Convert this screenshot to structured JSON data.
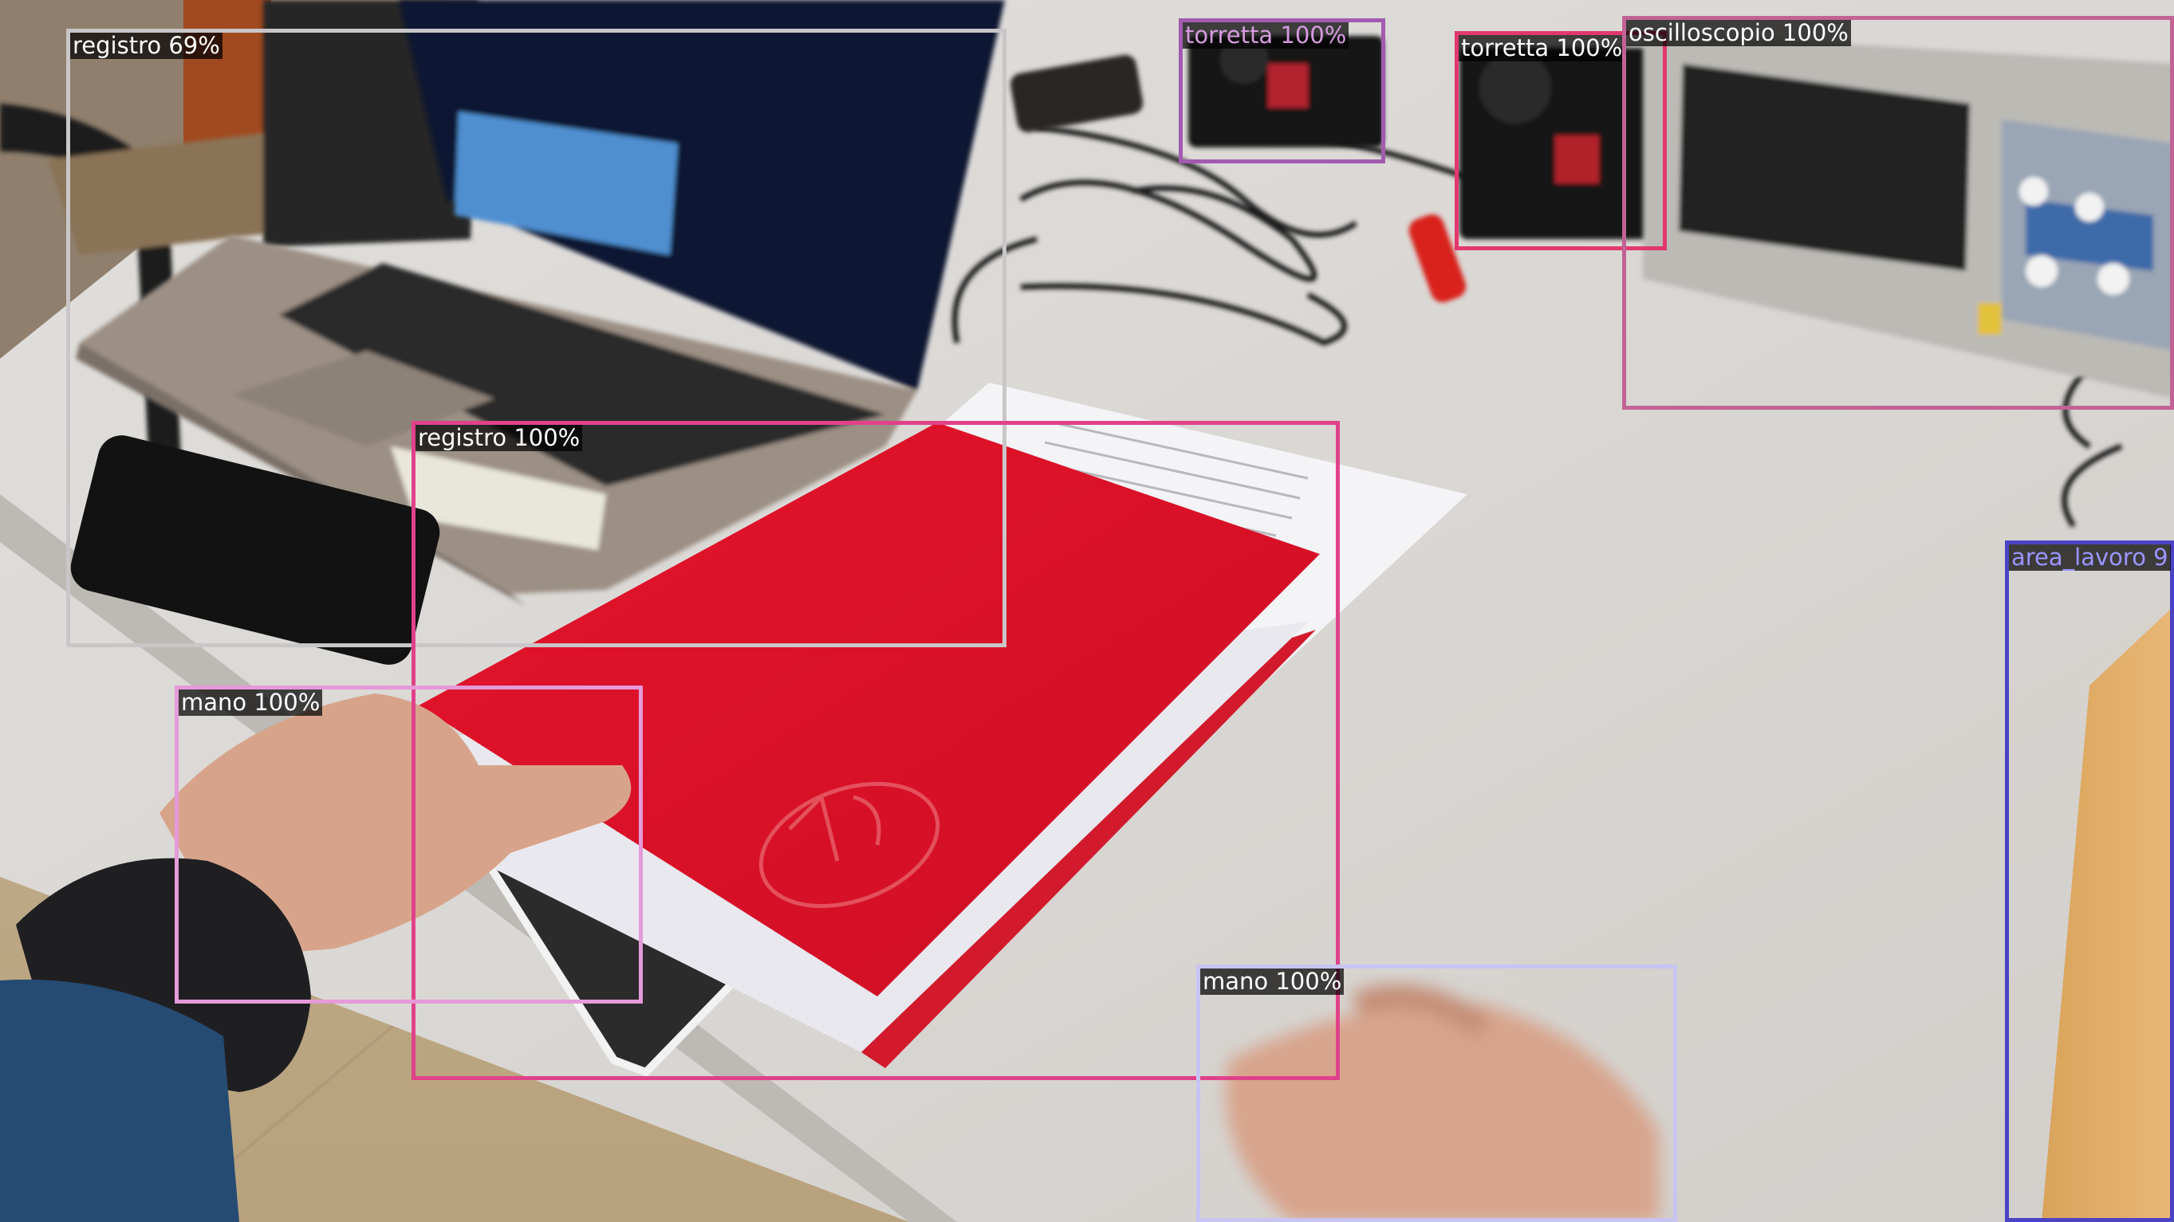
{
  "detections": [
    {
      "label": "registro 69%",
      "color": "#c9c6c8"
    },
    {
      "label": "torretta 100%",
      "color": "#a35ab0"
    },
    {
      "label": "torretta 100%",
      "color": "#e2386f"
    },
    {
      "label": "oscilloscopio 100%",
      "color": "#c26395"
    },
    {
      "label": "registro 100%",
      "color": "#e0428a"
    },
    {
      "label": "mano 100%",
      "color": "#e59ad9"
    },
    {
      "label": "mano 100%",
      "color": "#c8c4f2"
    },
    {
      "label": "area_lavoro 9",
      "color": "#4b43c4"
    }
  ]
}
